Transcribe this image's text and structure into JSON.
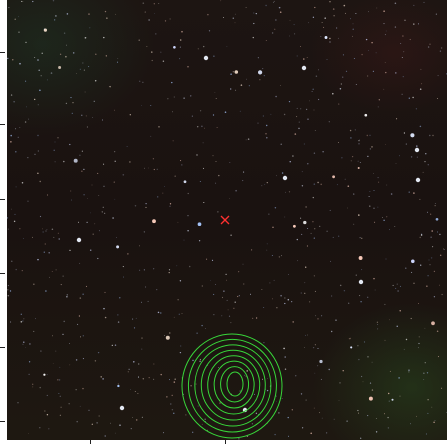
{
  "image": {
    "kind": "astronomical sky cutout with contour overlay",
    "marker_color": "#ff3030",
    "contour_color": "#38d63a",
    "contour_count": 8
  }
}
